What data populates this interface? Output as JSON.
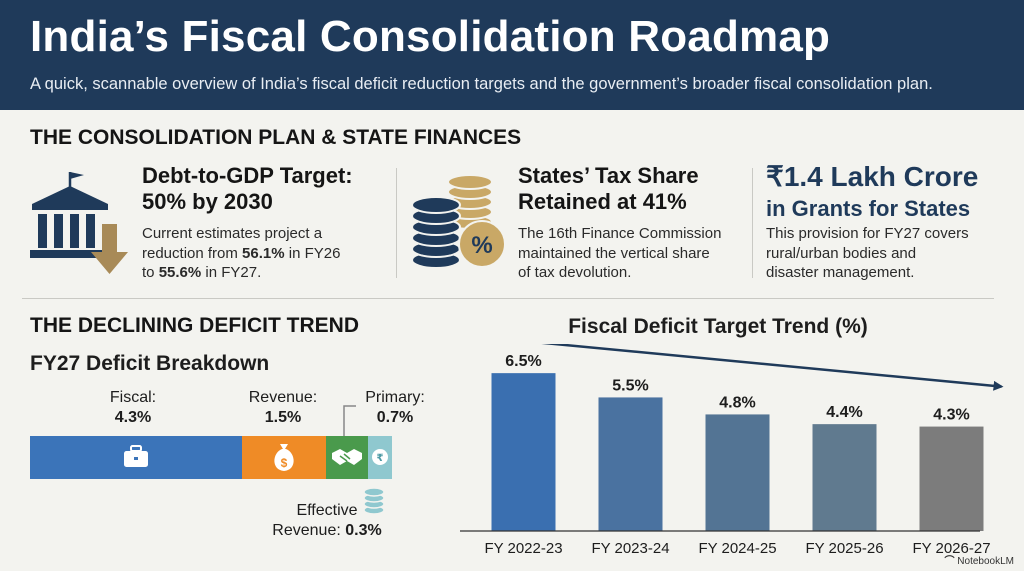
{
  "header": {
    "title": "India’s Fiscal Consolidation Roadmap",
    "subtitle": "A quick, scannable overview of India’s fiscal deficit reduction targets and the government’s broader fiscal consolidation plan."
  },
  "plan": {
    "section_title": "THE CONSOLIDATION PLAN & STATE FINANCES",
    "debt": {
      "icon": "bank-down-arrow-icon",
      "headline_1": "Debt-to-GDP Target:",
      "headline_2": "50% by 2030",
      "body_1": "Current estimates project a",
      "body_2a": "reduction from ",
      "body_2b": "56.1%",
      "body_2c": " in FY26",
      "body_3a": "to ",
      "body_3b": "55.6%",
      "body_3c": " in FY27."
    },
    "tax": {
      "icon": "coins-percent-icon",
      "headline_1": "States’ Tax Share",
      "headline_2": "Retained at 41%",
      "body_1": "The 16th Finance Commission",
      "body_2": "maintained the vertical share",
      "body_3": "of tax devolution."
    },
    "grants": {
      "headline_1": "₹1.4 Lakh Crore",
      "headline_2": "in Grants for States",
      "body_1": "This provision for FY27 covers",
      "body_2": "rural/urban bodies and",
      "body_3": "disaster management."
    }
  },
  "deficit": {
    "section_title": "THE DECLINING DEFICIT TREND",
    "breakdown_title": "FY27 Deficit Breakdown",
    "segments": [
      {
        "label": "Fiscal:",
        "value": "4.3%",
        "pct": 4.3,
        "color": "#3b74b9",
        "icon": "briefcase-icon"
      },
      {
        "label": "Revenue:",
        "value": "1.5%",
        "pct": 1.5,
        "color": "#ef8b26",
        "icon": "money-bag-icon"
      },
      {
        "label": "Primary:",
        "value": "0.7%",
        "pct": 0.7,
        "color": "#4a9a4c",
        "icon": "handshake-icon"
      },
      {
        "label": "Effective Revenue:",
        "value": "0.3%",
        "pct": 0.3,
        "color": "#8fc8cf",
        "icon": "rupee-coin-icon"
      }
    ],
    "effective_label_1": "Effective",
    "effective_label_2": "Revenue: ",
    "effective_value": "0.3%",
    "effective_icon": "coin-stack-icon"
  },
  "chart_data": {
    "type": "bar",
    "title": "Fiscal Deficit Target Trend (%)",
    "categories": [
      "FY 2022-23",
      "FY 2023-24",
      "FY 2024-25",
      "FY 2025-26",
      "FY 2026-27"
    ],
    "values": [
      6.5,
      5.5,
      4.8,
      4.4,
      4.3
    ],
    "value_labels": [
      "6.5%",
      "5.5%",
      "4.8%",
      "4.4%",
      "4.3%"
    ],
    "colors": [
      "#3a6fb0",
      "#4a72a0",
      "#537494",
      "#607a8f",
      "#7c7c7c"
    ],
    "ylim": [
      0,
      7
    ],
    "xlabel": "",
    "ylabel": "",
    "trend_arrow": true
  },
  "footer": {
    "brand": "NotebookLM"
  }
}
